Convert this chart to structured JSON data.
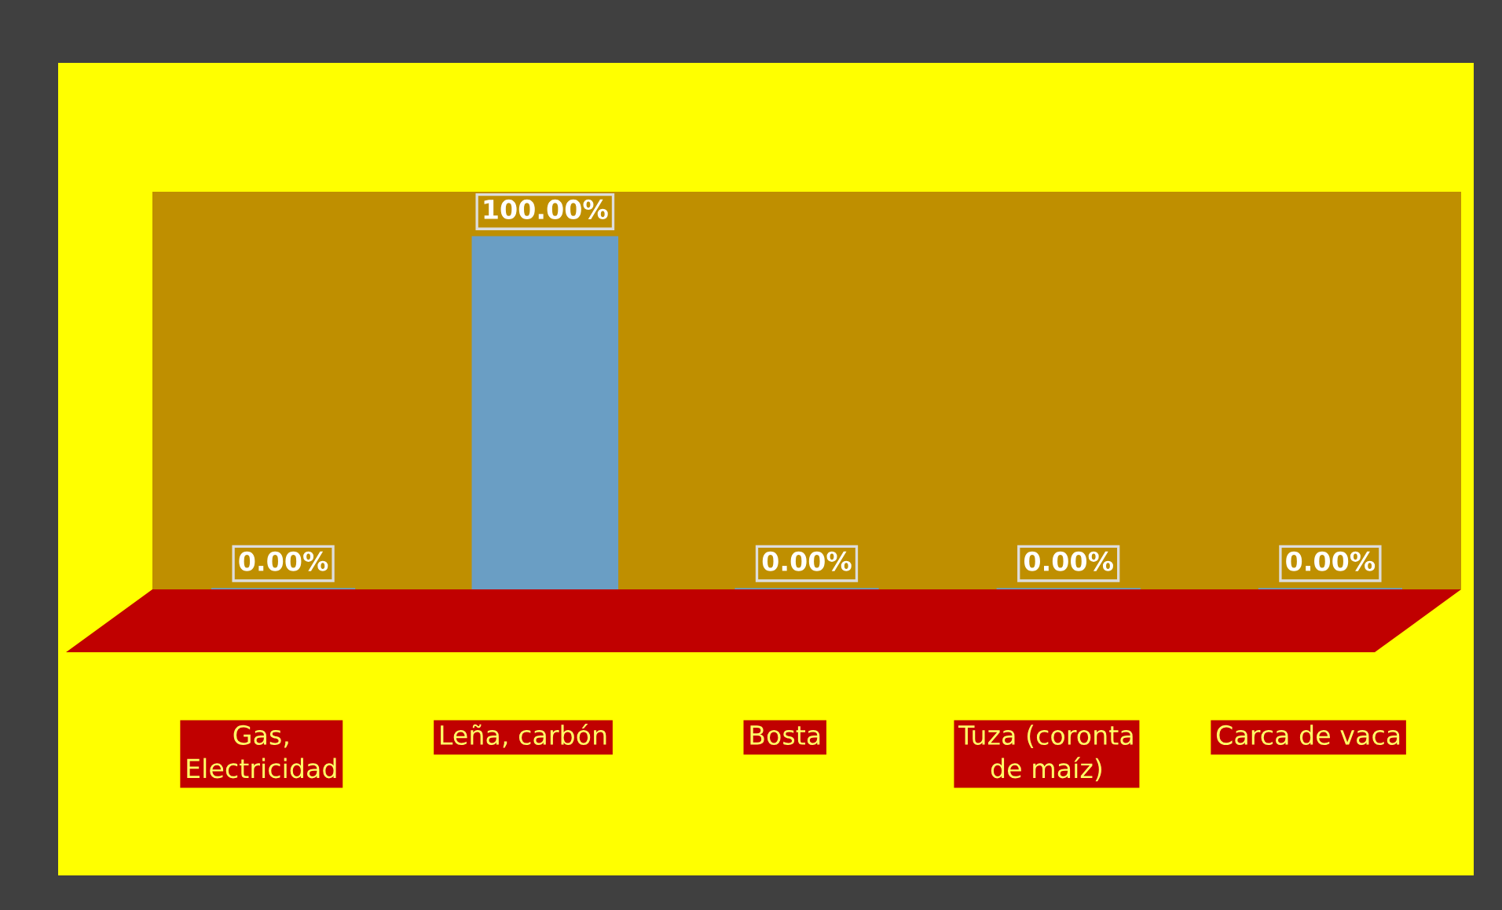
{
  "chart_data": {
    "type": "bar",
    "categories": [
      "Gas,\nElectricidad",
      "Leña, carbón",
      "Bosta",
      "Tuza (coronta\nde maíz)",
      "Carca de vaca"
    ],
    "values": [
      0,
      100,
      0,
      0,
      0
    ],
    "value_labels": [
      "0.00%",
      "100.00%",
      "0.00%",
      "0.00%",
      "0.00%"
    ],
    "color": "#6a9ec4",
    "legend": false
  }
}
